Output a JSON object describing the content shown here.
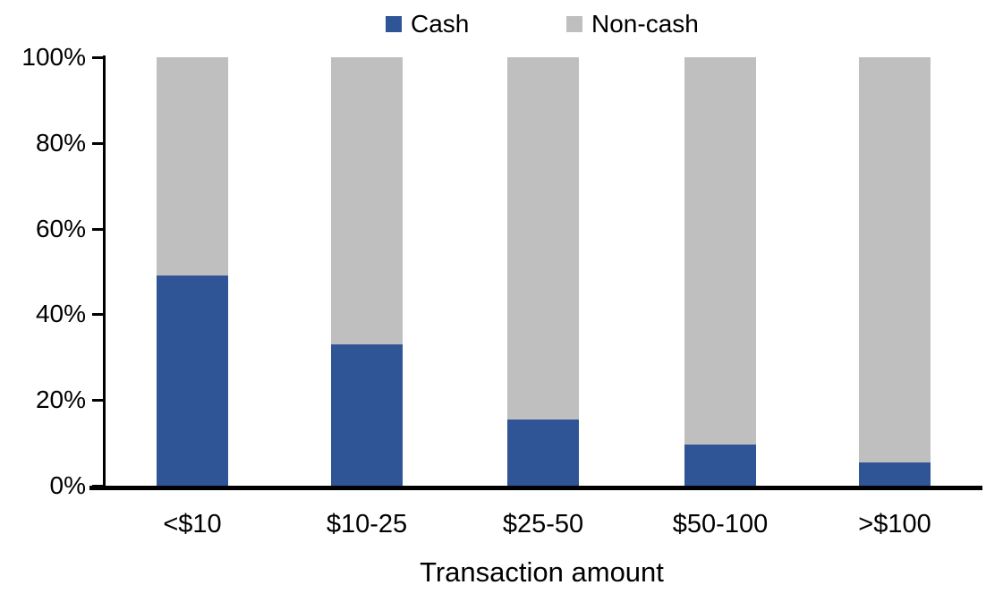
{
  "chart_data": {
    "type": "bar",
    "variant": "stacked-100",
    "title": "",
    "xlabel": "Transaction amount",
    "ylabel": "",
    "unit": "%",
    "categories": [
      "<$10",
      "$10-25",
      "$25-50",
      "$50-100",
      ">$100"
    ],
    "series": [
      {
        "name": "Cash",
        "color": "#2F5597",
        "values": [
          49,
          33,
          15.5,
          9.5,
          5.5
        ]
      },
      {
        "name": "Non-cash",
        "color": "#BFBFBF",
        "values": [
          51,
          67,
          84.5,
          90.5,
          94.5
        ]
      }
    ],
    "ylim": [
      0,
      100
    ],
    "y_ticks": [
      0,
      20,
      40,
      60,
      80,
      100
    ],
    "y_tick_labels": [
      "0%",
      "20%",
      "40%",
      "60%",
      "80%",
      "100%"
    ],
    "legend_position": "top",
    "grid": false,
    "colors": {
      "axis": "#000000",
      "text": "#000000",
      "background": "#FFFFFF"
    }
  }
}
